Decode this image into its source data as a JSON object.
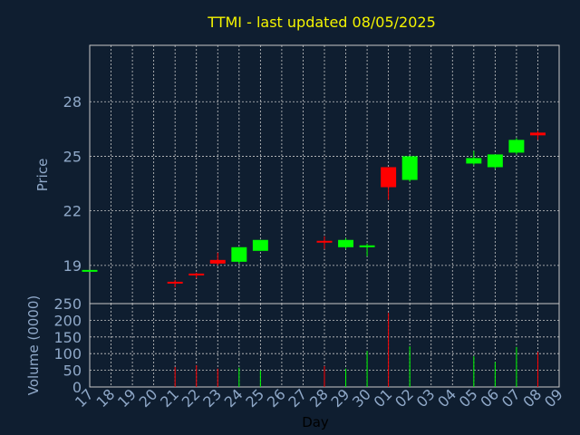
{
  "chart_data": [
    {
      "type": "candlestick",
      "title": "TTMI - last updated 08/05/2025",
      "ylabel": "Price",
      "ylim": [
        16.9,
        31.1
      ],
      "yticks": [
        19,
        22,
        25,
        28
      ],
      "grid": true,
      "colors": {
        "up": "#00ff00",
        "down": "#ff0000",
        "background": "#0f1e30",
        "grid": "#c8c8c8",
        "axis_text": "#8fa8c8",
        "title": "#f4f400"
      },
      "categories": [
        "17",
        "18",
        "19",
        "20",
        "21",
        "22",
        "23",
        "24",
        "25",
        "26",
        "27",
        "28",
        "29",
        "30",
        "01",
        "02",
        "03",
        "04",
        "05",
        "06",
        "07",
        "08",
        "09"
      ],
      "candles": [
        {
          "x": "17",
          "open": 18.7,
          "close": 18.7,
          "high": 18.7,
          "low": 18.7
        },
        {
          "x": "21",
          "open": 18.1,
          "close": 18.0,
          "high": 18.2,
          "low": 17.8
        },
        {
          "x": "22",
          "open": 18.5,
          "close": 18.45,
          "high": 18.6,
          "low": 18.3
        },
        {
          "x": "23",
          "open": 19.3,
          "close": 19.1,
          "high": 19.7,
          "low": 19.0
        },
        {
          "x": "24",
          "open": 19.2,
          "close": 20.0,
          "high": 20.0,
          "low": 19.1
        },
        {
          "x": "25",
          "open": 19.8,
          "close": 20.4,
          "high": 20.4,
          "low": 19.8
        },
        {
          "x": "28",
          "open": 20.3,
          "close": 20.25,
          "high": 20.6,
          "low": 19.9
        },
        {
          "x": "29",
          "open": 20.0,
          "close": 20.4,
          "high": 20.5,
          "low": 19.9
        },
        {
          "x": "30",
          "open": 20.0,
          "close": 20.05,
          "high": 20.2,
          "low": 19.5
        },
        {
          "x": "01",
          "open": 24.4,
          "close": 23.3,
          "high": 24.4,
          "low": 22.6
        },
        {
          "x": "02",
          "open": 23.7,
          "close": 25.0,
          "high": 25.0,
          "low": 23.6
        },
        {
          "x": "05",
          "open": 24.6,
          "close": 24.9,
          "high": 25.3,
          "low": 24.5
        },
        {
          "x": "06",
          "open": 24.4,
          "close": 25.1,
          "high": 25.1,
          "low": 24.3
        },
        {
          "x": "07",
          "open": 25.2,
          "close": 25.9,
          "high": 26.0,
          "low": 25.1
        },
        {
          "x": "08",
          "open": 26.3,
          "close": 26.15,
          "high": 26.4,
          "low": 25.9
        }
      ]
    },
    {
      "type": "bar",
      "ylabel": "Volume (0000)",
      "xlabel": "Day",
      "ylim": [
        0,
        250
      ],
      "yticks": [
        0,
        50,
        100,
        150,
        200,
        250
      ],
      "grid": true,
      "categories": [
        "17",
        "18",
        "19",
        "20",
        "21",
        "22",
        "23",
        "24",
        "25",
        "26",
        "27",
        "28",
        "29",
        "30",
        "01",
        "02",
        "03",
        "04",
        "05",
        "06",
        "07",
        "08",
        "09"
      ],
      "bars": [
        {
          "x": "21",
          "value": 60,
          "direction": "down"
        },
        {
          "x": "22",
          "value": 65,
          "direction": "down"
        },
        {
          "x": "23",
          "value": 55,
          "direction": "down"
        },
        {
          "x": "24",
          "value": 58,
          "direction": "up"
        },
        {
          "x": "25",
          "value": 50,
          "direction": "up"
        },
        {
          "x": "28",
          "value": 63,
          "direction": "down"
        },
        {
          "x": "29",
          "value": 55,
          "direction": "up"
        },
        {
          "x": "30",
          "value": 108,
          "direction": "up"
        },
        {
          "x": "01",
          "value": 222,
          "direction": "down"
        },
        {
          "x": "02",
          "value": 122,
          "direction": "up"
        },
        {
          "x": "05",
          "value": 92,
          "direction": "up"
        },
        {
          "x": "06",
          "value": 75,
          "direction": "up"
        },
        {
          "x": "07",
          "value": 120,
          "direction": "up"
        },
        {
          "x": "08",
          "value": 105,
          "direction": "down"
        }
      ]
    }
  ]
}
